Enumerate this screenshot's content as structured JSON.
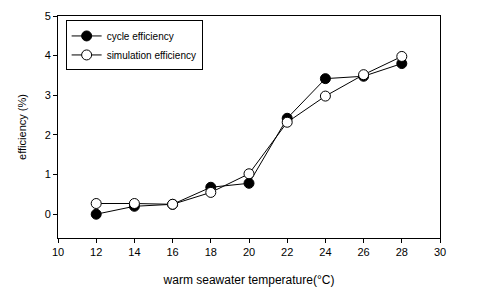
{
  "chart_data": {
    "type": "line",
    "x_label": "warm seawater temperature(°C)",
    "y_label": "efficiency (%)",
    "x": [
      12,
      14,
      16,
      18,
      20,
      22,
      24,
      26,
      28
    ],
    "series": [
      {
        "name": "cycle efficiency",
        "color": "#000000",
        "marker": "filled",
        "values": [
          0,
          0.2,
          0.25,
          0.68,
          0.78,
          2.42,
          3.42,
          3.48,
          3.8
        ]
      },
      {
        "name": "simulation efficiency",
        "color": "#000000",
        "marker": "open",
        "values": [
          0.27,
          0.27,
          0.25,
          0.55,
          1.02,
          2.32,
          2.98,
          3.52,
          3.98
        ]
      }
    ],
    "xlim": [
      10,
      30
    ],
    "xticks": [
      10,
      12,
      14,
      16,
      18,
      20,
      22,
      24,
      26,
      28,
      30
    ],
    "ylim": [
      -0.6,
      5
    ],
    "yticks": [
      0,
      1,
      2,
      3,
      4,
      5
    ],
    "grid": false,
    "legend": "top left"
  }
}
